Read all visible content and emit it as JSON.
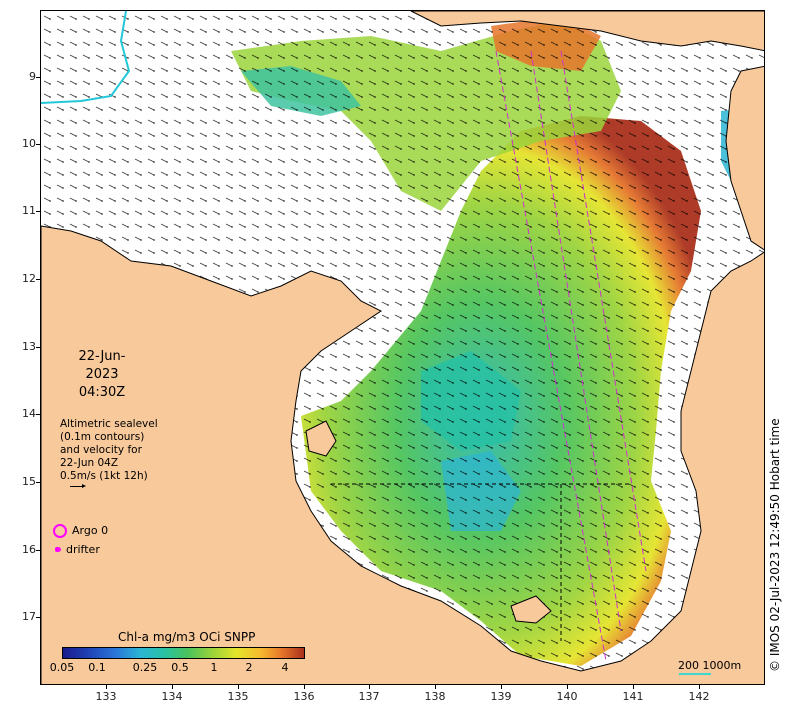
{
  "map": {
    "date": "22-Jun-2023",
    "time": "04:30Z",
    "lat_labels": [
      "9",
      "10",
      "11",
      "12",
      "13",
      "14",
      "15",
      "16",
      "17"
    ],
    "lon_labels": [
      "133",
      "134",
      "135",
      "136",
      "137",
      "138",
      "139",
      "140",
      "141",
      "142"
    ],
    "colors": {
      "land": "#f8c99b",
      "coast": "#000000",
      "river": "#22c8d8",
      "track": "#cc33cc",
      "argo": "#ff00ff"
    }
  },
  "legend": {
    "altimetry_lines": [
      "Altimetric sealevel",
      "(0.1m contours)",
      "and velocity for",
      "22-Jun 04Z",
      "0.5m/s (1kt 12h)"
    ],
    "argo_label": "Argo 0",
    "drifter_label": "drifter"
  },
  "colorbar": {
    "title": "Chl-a mg/m3 OCi SNPP",
    "ticks": [
      "0.05",
      "0.1",
      "0.25",
      "0.5",
      "1",
      "2",
      "4"
    ]
  },
  "scale": {
    "label": "200  1000m"
  },
  "credit": "© IMOS 02-Jul-2023 12:49:50 Hobart time"
}
